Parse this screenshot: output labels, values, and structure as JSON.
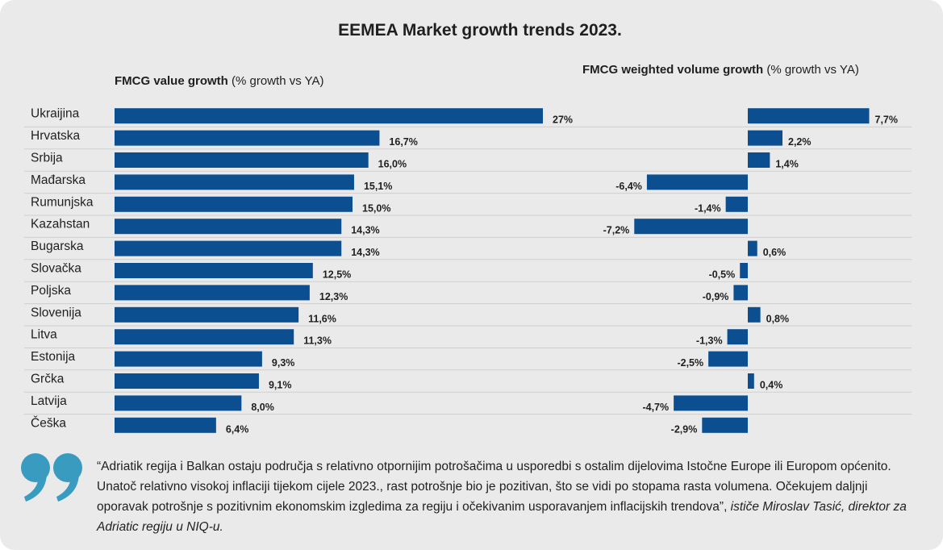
{
  "title": "EEMEA Market growth trends 2023.",
  "left_chart": {
    "label_bold": "FMCG value growth",
    "label_rest": " (% growth vs YA)"
  },
  "right_chart": {
    "label_bold": "FMCG weighted volume growth",
    "label_rest": " (% growth vs YA)"
  },
  "colors": {
    "bar": "#0c4f91",
    "panel": "#eaeaea",
    "accent": "#3a9bc1"
  },
  "chart_data": [
    {
      "type": "bar",
      "orientation": "horizontal",
      "title": "FMCG value growth (% growth vs YA)",
      "categories": [
        "Ukraijina",
        "Hrvatska",
        "Srbija",
        "Mađarska",
        "Rumunjska",
        "Kazahstan",
        "Bugarska",
        "Slovačka",
        "Poljska",
        "Slovenija",
        "Litva",
        "Estonija",
        "Grčka",
        "Latvija",
        "Češka"
      ],
      "values": [
        27,
        16.7,
        16.0,
        15.1,
        15.0,
        14.3,
        14.3,
        12.5,
        12.3,
        11.6,
        11.3,
        9.3,
        9.1,
        8.0,
        6.4
      ],
      "value_labels": [
        "27%",
        "16,7%",
        "16,0%",
        "15,1%",
        "15,0%",
        "14,3%",
        "14,3%",
        "12,5%",
        "12,3%",
        "11,6%",
        "11,3%",
        "9,3%",
        "9,1%",
        "8,0%",
        "6,4%"
      ],
      "xlim": [
        0,
        27
      ],
      "grid": true
    },
    {
      "type": "bar",
      "orientation": "horizontal",
      "title": "FMCG weighted volume growth (% growth vs YA)",
      "categories": [
        "Ukraijina",
        "Hrvatska",
        "Srbija",
        "Mađarska",
        "Rumunjska",
        "Kazahstan",
        "Bugarska",
        "Slovačka",
        "Poljska",
        "Slovenija",
        "Litva",
        "Estonija",
        "Grčka",
        "Latvija",
        "Češka"
      ],
      "values": [
        7.7,
        2.2,
        1.4,
        -6.4,
        -1.4,
        -7.2,
        0.6,
        -0.5,
        -0.9,
        0.8,
        -1.3,
        -2.5,
        0.4,
        -4.7,
        -2.9
      ],
      "value_labels": [
        "7,7%",
        "2,2%",
        "1,4%",
        "-6,4%",
        "-1,4%",
        "-7,2%",
        "0,6%",
        "-0,5%",
        "-0,9%",
        "0,8%",
        "-1,3%",
        "-2,5%",
        "0,4%",
        "-4,7%",
        "-2,9%"
      ],
      "xlim": [
        -7.2,
        7.7
      ],
      "grid": true
    }
  ],
  "quote": {
    "text": "“Adriatik regija i Balkan ostaju područja s relativno otpornijim potrošačima u usporedbi s ostalim dijelovima Istočne Europe ili Europom općenito. Unatoč relativno visokoj inflaciji tijekom cijele 2023., rast potrošnje bio je pozitivan, što se vidi po stopama rasta volumena. Očekujem daljnji oporavak potrošnje s pozitivnim ekonomskim izgledima za regiju i očekivanim usporavanjem inflacijskih trendova”,",
    "attribution": " ističe Miroslav Tasić, direktor za Adriatic regiju u NIQ-u."
  }
}
